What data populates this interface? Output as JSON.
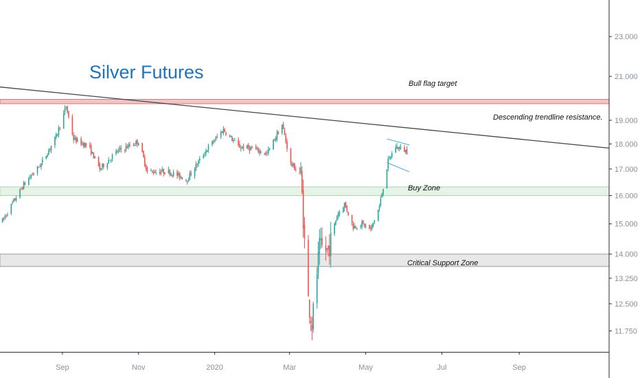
{
  "chart_data": {
    "type": "candlestick",
    "title": "Silver Futures",
    "y_axis": {
      "scale": "log",
      "range": [
        11.2,
        25.0
      ],
      "ticks": [
        {
          "value": 23.0,
          "label": "23.000"
        },
        {
          "value": 21.0,
          "label": "21.000"
        },
        {
          "value": 19.0,
          "label": "19.000"
        },
        {
          "value": 18.0,
          "label": "18.000"
        },
        {
          "value": 17.0,
          "label": "17.000"
        },
        {
          "value": 16.0,
          "label": "16.000"
        },
        {
          "value": 15.0,
          "label": "15.000"
        },
        {
          "value": 14.0,
          "label": "14.000"
        },
        {
          "value": 13.25,
          "label": "13.250"
        },
        {
          "value": 12.5,
          "label": "12.500"
        },
        {
          "value": 11.75,
          "label": "11.750"
        }
      ]
    },
    "x_axis": {
      "range": [
        "2019-07-13",
        "2020-11-12"
      ],
      "ticks": [
        {
          "date": "2019-09-01",
          "label": "Sep"
        },
        {
          "date": "2019-11-01",
          "label": "Nov"
        },
        {
          "date": "2020-01-01",
          "label": "2020"
        },
        {
          "date": "2020-03-01",
          "label": "Mar"
        },
        {
          "date": "2020-05-01",
          "label": "May"
        },
        {
          "date": "2020-07-01",
          "label": "Jul"
        },
        {
          "date": "2020-09-01",
          "label": "Sep"
        }
      ]
    },
    "key_prices": [
      {
        "date": "2019-07-15",
        "price": 15.1
      },
      {
        "date": "2019-08-01",
        "price": 16.4
      },
      {
        "date": "2019-08-15",
        "price": 17.2
      },
      {
        "date": "2019-08-27",
        "price": 18.3
      },
      {
        "date": "2019-09-04",
        "price": 19.6
      },
      {
        "date": "2019-09-10",
        "price": 18.2
      },
      {
        "date": "2019-09-22",
        "price": 17.9
      },
      {
        "date": "2019-10-01",
        "price": 17.0
      },
      {
        "date": "2019-10-15",
        "price": 17.7
      },
      {
        "date": "2019-11-01",
        "price": 18.1
      },
      {
        "date": "2019-11-08",
        "price": 16.9
      },
      {
        "date": "2019-11-25",
        "price": 16.9
      },
      {
        "date": "2019-12-10",
        "price": 16.6
      },
      {
        "date": "2019-12-26",
        "price": 17.8
      },
      {
        "date": "2020-01-08",
        "price": 18.6
      },
      {
        "date": "2020-01-20",
        "price": 17.9
      },
      {
        "date": "2020-02-01",
        "price": 17.8
      },
      {
        "date": "2020-02-12",
        "price": 17.6
      },
      {
        "date": "2020-02-24",
        "price": 18.8
      },
      {
        "date": "2020-03-02",
        "price": 17.2
      },
      {
        "date": "2020-03-10",
        "price": 16.8
      },
      {
        "date": "2020-03-13",
        "price": 14.4
      },
      {
        "date": "2020-03-16",
        "price": 12.6
      },
      {
        "date": "2020-03-19",
        "price": 11.9
      },
      {
        "date": "2020-03-25",
        "price": 14.2
      },
      {
        "date": "2020-04-01",
        "price": 14.1
      },
      {
        "date": "2020-04-08",
        "price": 15.3
      },
      {
        "date": "2020-04-14",
        "price": 15.7
      },
      {
        "date": "2020-04-21",
        "price": 14.9
      },
      {
        "date": "2020-04-28",
        "price": 15.0
      },
      {
        "date": "2020-05-05",
        "price": 14.8
      },
      {
        "date": "2020-05-12",
        "price": 15.6
      },
      {
        "date": "2020-05-19",
        "price": 17.3
      },
      {
        "date": "2020-05-25",
        "price": 17.9
      },
      {
        "date": "2020-06-03",
        "price": 17.7
      }
    ],
    "annotations": [
      {
        "type": "hline_band",
        "label": "Bull flag target",
        "low": 19.73,
        "high": 19.93,
        "color": "#f7c2c6",
        "border": "#e57373"
      },
      {
        "type": "hline_band",
        "label": "Buy Zone",
        "low": 16.0,
        "high": 16.32,
        "color": "#e6f3e6",
        "border": "#a5d6a7"
      },
      {
        "type": "hline_band",
        "label": "Critical Support Zone",
        "low": 13.61,
        "high": 14.0,
        "color": "#e8e8e8",
        "border": "#9e9e9e"
      },
      {
        "type": "trendline",
        "label": "Descending trendline resistance.",
        "points": [
          {
            "date": "2019-07-13",
            "price": 20.5
          },
          {
            "date": "2020-11-12",
            "price": 17.83
          }
        ],
        "color": "#444444"
      },
      {
        "type": "trendline",
        "label": "",
        "points": [
          {
            "date": "2020-05-18",
            "price": 18.21
          },
          {
            "date": "2020-06-05",
            "price": 17.96
          }
        ],
        "color": "#4fa3d9"
      },
      {
        "type": "trendline",
        "label": "",
        "points": [
          {
            "date": "2020-05-18",
            "price": 17.25
          },
          {
            "date": "2020-06-05",
            "price": 16.89
          }
        ],
        "color": "#4fa3d9"
      }
    ],
    "colors": {
      "up": "#26a69a",
      "down": "#ef5350",
      "axis_text": "#8a8f99",
      "title": "#1e73be"
    }
  }
}
